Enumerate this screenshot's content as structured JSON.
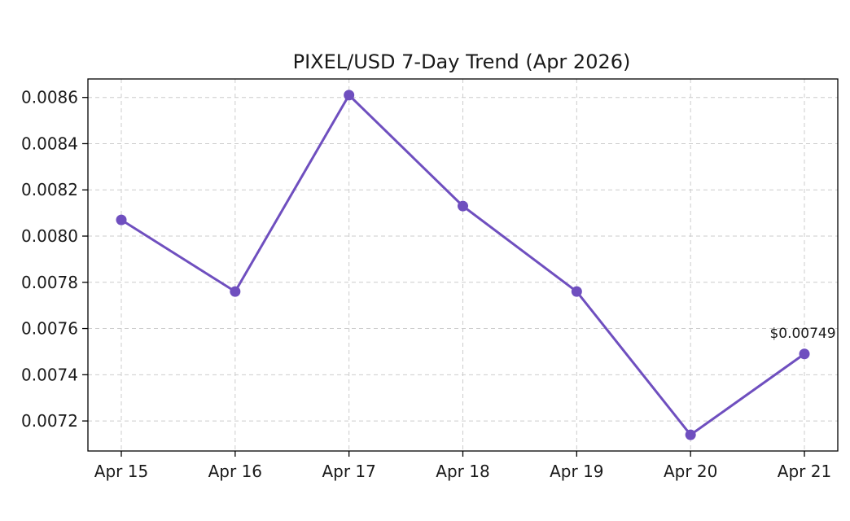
{
  "chart_data": {
    "type": "line",
    "title": "PIXEL/USD 7-Day Trend (Apr 2026)",
    "xlabel": "",
    "ylabel": "",
    "categories": [
      "Apr 15",
      "Apr 16",
      "Apr 17",
      "Apr 18",
      "Apr 19",
      "Apr 20",
      "Apr 21"
    ],
    "series": [
      {
        "values": [
          0.00807,
          0.00776,
          0.00861,
          0.00813,
          0.00776,
          0.00714,
          0.00749
        ]
      }
    ],
    "ylim": [
      0.00707,
      0.00868
    ],
    "yticks": [
      "0.0072",
      "0.0074",
      "0.0076",
      "0.0078",
      "0.0080",
      "0.0082",
      "0.0084",
      "0.0086"
    ],
    "grid": true,
    "line_color": "#6f4fbf",
    "annotation": {
      "category": "Apr 21",
      "text": "$0.00749"
    }
  }
}
